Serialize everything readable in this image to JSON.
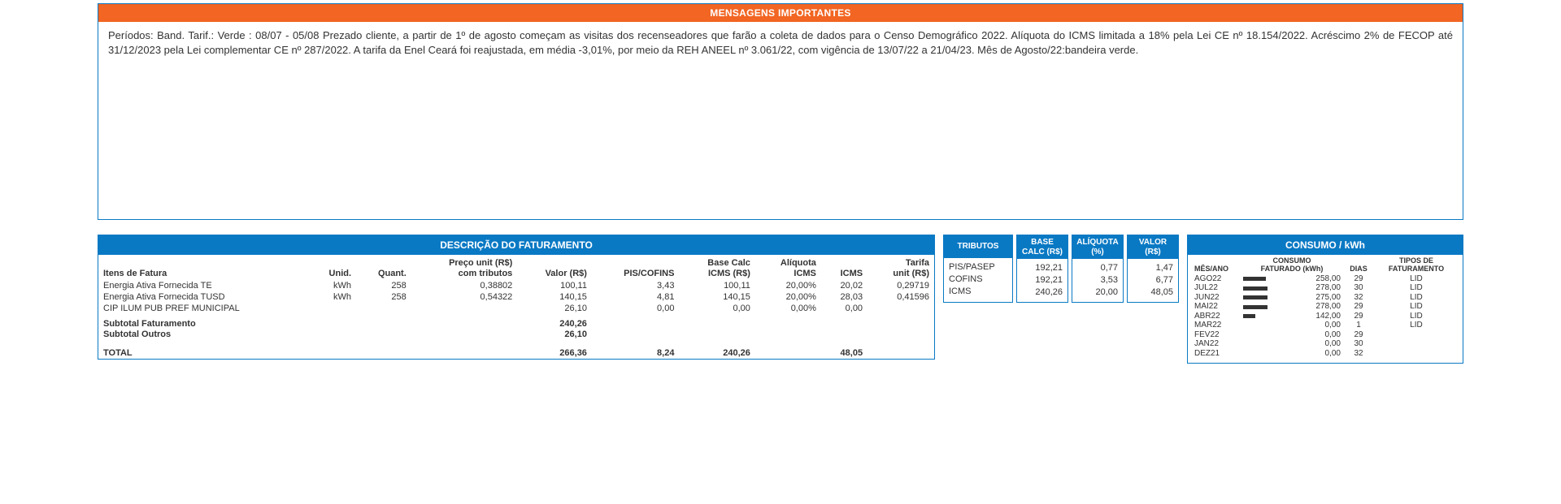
{
  "messages": {
    "title": "MENSAGENS IMPORTANTES",
    "body": "Períodos: Band. Tarif.: Verde : 08/07 - 05/08 Prezado cliente, a partir de 1º de agosto começam as visitas dos recenseadores que farão a coleta de dados para o Censo Demográfico 2022. Alíquota do ICMS limitada a 18% pela Lei CE nº 18.154/2022. Acréscimo 2% de FECOP até 31/12/2023 pela Lei complementar CE nº 287/2022. A tarifa da Enel Ceará foi reajustada, em média -3,01%, por meio da REH ANEEL nº 3.061/22, com vigência de 13/07/22 a 21/04/23. Mês de Agosto/22:bandeira verde."
  },
  "fat": {
    "title": "DESCRIÇÃO DO FATURAMENTO",
    "columns": [
      "Itens de Fatura",
      "Unid.",
      "Quant.",
      "Preço unit (R$)\ncom tributos",
      "Valor (R$)",
      "PIS/COFINS",
      "Base Calc\nICMS (R$)",
      "Alíquota\nICMS",
      "ICMS",
      "Tarifa\nunit (R$)"
    ],
    "rows": [
      [
        "Energia Ativa Fornecida TE",
        "kWh",
        "258",
        "0,38802",
        "100,11",
        "3,43",
        "100,11",
        "20,00%",
        "20,02",
        "0,29719"
      ],
      [
        "Energia Ativa Fornecida TUSD",
        "kWh",
        "258",
        "0,54322",
        "140,15",
        "4,81",
        "140,15",
        "20,00%",
        "28,03",
        "0,41596"
      ],
      [
        "CIP ILUM PUB PREF MUNICIPAL",
        "",
        "",
        "",
        "26,10",
        "0,00",
        "0,00",
        "0,00%",
        "0,00",
        ""
      ]
    ],
    "subtotal_label": "Subtotal Faturamento",
    "subtotal_value": "240,26",
    "subtotal_outros_label": "Subtotal Outros",
    "subtotal_outros_value": "26,10",
    "total_label": "TOTAL",
    "total": [
      "",
      "",
      "",
      "266,36",
      "8,24",
      "240,26",
      "",
      "48,05",
      ""
    ]
  },
  "tributos": {
    "cols": [
      {
        "head": "TRIBUTOS",
        "rows": [
          "PIS/PASEP",
          "COFINS",
          "ICMS"
        ]
      },
      {
        "head": "BASE\nCALC (R$)",
        "rows": [
          "192,21",
          "192,21",
          "240,26"
        ]
      },
      {
        "head": "ALÍQUOTA\n(%)",
        "rows": [
          "0,77",
          "3,53",
          "20,00"
        ]
      },
      {
        "head": "VALOR\n(R$)",
        "rows": [
          "1,47",
          "6,77",
          "48,05"
        ]
      }
    ]
  },
  "consumo": {
    "title": "CONSUMO / kWh",
    "headers": [
      "MÊS/ANO",
      "CONSUMO\nFATURADO (kWh)",
      "DIAS",
      "TIPOS DE\nFATURAMENTO"
    ],
    "maxval": 278.0,
    "rows": [
      {
        "mes": "AGO22",
        "val": "258,00",
        "num": 258.0,
        "dias": "29",
        "tipo": "LID"
      },
      {
        "mes": "JUL22",
        "val": "278,00",
        "num": 278.0,
        "dias": "30",
        "tipo": "LID"
      },
      {
        "mes": "JUN22",
        "val": "275,00",
        "num": 275.0,
        "dias": "32",
        "tipo": "LID"
      },
      {
        "mes": "MAI22",
        "val": "278,00",
        "num": 278.0,
        "dias": "29",
        "tipo": "LID"
      },
      {
        "mes": "ABR22",
        "val": "142,00",
        "num": 142.0,
        "dias": "29",
        "tipo": "LID"
      },
      {
        "mes": "MAR22",
        "val": "0,00",
        "num": 0.0,
        "dias": "1",
        "tipo": "LID"
      },
      {
        "mes": "FEV22",
        "val": "0,00",
        "num": 0.0,
        "dias": "29",
        "tipo": ""
      },
      {
        "mes": "JAN22",
        "val": "0,00",
        "num": 0.0,
        "dias": "30",
        "tipo": ""
      },
      {
        "mes": "DEZ21",
        "val": "0,00",
        "num": 0.0,
        "dias": "32",
        "tipo": ""
      }
    ]
  }
}
